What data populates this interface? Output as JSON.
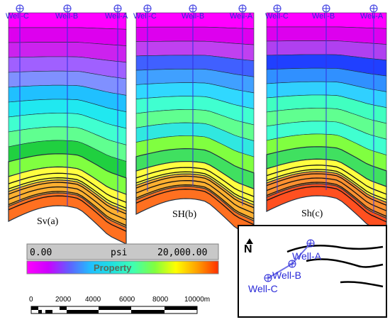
{
  "panels": [
    {
      "id": "sv",
      "label": "Sv(a)",
      "wells": [
        "Well-C",
        "Well-B",
        "Well-A"
      ],
      "profile": [
        "#ff00ff",
        "#dd00ee",
        "#cc22ee",
        "#a060ff",
        "#8090ff",
        "#20c0ff",
        "#20e8f0",
        "#40ffd0",
        "#60ff90",
        "#20d040",
        "#80ff40",
        "#ffff40",
        "#ffb030",
        "#ff7020"
      ]
    },
    {
      "id": "sh",
      "label": "SH(b)",
      "wells": [
        "Well-C",
        "Well-B",
        "Well-A"
      ],
      "profile": [
        "#ff00ff",
        "#dd00ee",
        "#c040f0",
        "#4060ff",
        "#40a0ff",
        "#30d8ff",
        "#40ffd0",
        "#60ff90",
        "#30e8e0",
        "#80ff40",
        "#40e060",
        "#ffff40",
        "#ffb030",
        "#ff7020"
      ]
    },
    {
      "id": "shmin",
      "label": "Sh(c)",
      "wells": [
        "Well-C",
        "Well-B",
        "Well-A"
      ],
      "profile": [
        "#ff00ff",
        "#dd00ee",
        "#b040f0",
        "#2040ff",
        "#3090ff",
        "#30d0ff",
        "#40ffc0",
        "#60ff90",
        "#40ffd0",
        "#80ff40",
        "#40e060",
        "#ffff40",
        "#ff9030",
        "#ff5020"
      ]
    }
  ],
  "colorbar": {
    "min_label": "0.00",
    "unit": "psi",
    "max_label": "20,000.00",
    "title": "Property",
    "stops": [
      "#ff00ff",
      "#cc00ff",
      "#6060ff",
      "#20c0ff",
      "#20e0e0",
      "#40ffb0",
      "#80ff40",
      "#ffff00",
      "#ffa000",
      "#ff3000"
    ]
  },
  "scalebar": {
    "ticks": [
      "0",
      "2000",
      "4000",
      "6000",
      "8000",
      "10000m"
    ]
  },
  "map": {
    "north_label": "N",
    "wells": [
      "Well-A",
      "Well-B",
      "Well-C"
    ]
  }
}
